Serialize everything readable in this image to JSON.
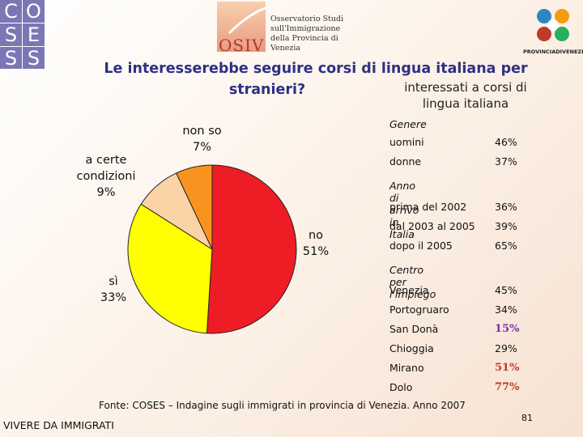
{
  "logos": {
    "coses_letters": [
      "C",
      "O",
      "S",
      "E",
      "S",
      "S"
    ],
    "osiv_abbrev": "OSIV",
    "osiv_text": "Osservatorio Studi\nsull'Immigrazione\ndella Provincia di Venezia",
    "provincia_text": "PROVINCIADIVENEZIA"
  },
  "chart_data": {
    "type": "pie",
    "title_line1": "Le interesserebbe seguire corsi di lingua italiana per",
    "title_line2": "stranieri?",
    "slices": [
      {
        "label": "no",
        "value": 51,
        "value_label": "51%",
        "color": "#ee1c25"
      },
      {
        "label": "sì",
        "value": 33,
        "value_label": "33%",
        "color": "#ffff00"
      },
      {
        "label": "a certe condizioni",
        "value": 9,
        "value_label": "9%",
        "color": "#fbd3a6"
      },
      {
        "label": "non so",
        "value": 7,
        "value_label": "7%",
        "color": "#f7931e"
      }
    ]
  },
  "side_table": {
    "heading_line1": "interessati a corsi di",
    "heading_line2": "lingua italiana",
    "sections": [
      {
        "title": "Genere",
        "rows": [
          {
            "label": "uomini",
            "value": "46%",
            "highlight": ""
          },
          {
            "label": "donne",
            "value": "37%",
            "highlight": ""
          }
        ]
      },
      {
        "title": "Anno di arrivo in Italia",
        "rows": [
          {
            "label": "prima del 2002",
            "value": "36%",
            "highlight": ""
          },
          {
            "label": "dal 2003 al 2005",
            "value": "39%",
            "highlight": ""
          },
          {
            "label": "dopo il 2005",
            "value": "65%",
            "highlight": ""
          }
        ]
      },
      {
        "title": "Centro per l'impiego",
        "rows": [
          {
            "label": "Venezia",
            "value": "45%",
            "highlight": ""
          },
          {
            "label": "Portogruaro",
            "value": "34%",
            "highlight": ""
          },
          {
            "label": "San Donà",
            "value": "15%",
            "highlight": "#7b2fa8"
          },
          {
            "label": "Chioggia",
            "value": "29%",
            "highlight": ""
          },
          {
            "label": "Mirano",
            "value": "51%",
            "highlight": "#c0392b"
          },
          {
            "label": "Dolo",
            "value": "77%",
            "highlight": "#c0392b"
          }
        ]
      }
    ]
  },
  "source": "Fonte: COSES – Indagine sugli immigrati in provincia di Venezia. Anno 2007",
  "footer": "VIVERE DA IMMIGRATI",
  "page_number": "81"
}
